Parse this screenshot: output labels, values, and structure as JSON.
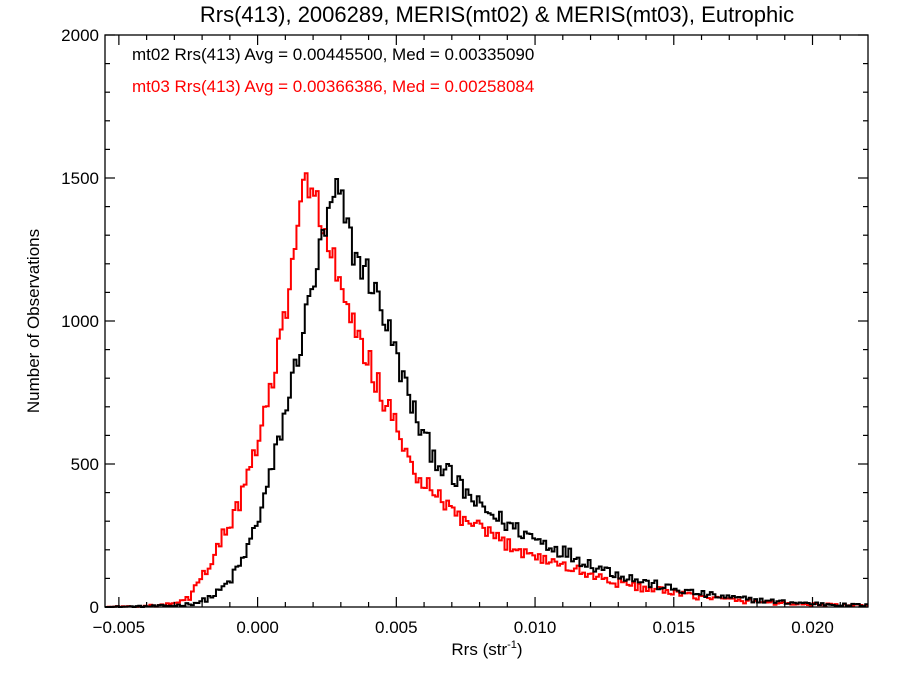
{
  "chart_data": {
    "type": "histogram",
    "title": "Rrs(413), 2006289, MERIS(mt02) & MERIS(mt03), Eutrophic",
    "xlabel": "Rrs (str",
    "xlabel_sup": "-1",
    "xlabel_close": ")",
    "ylabel": "Number of Observations",
    "xlim": [
      -0.0055,
      0.022
    ],
    "ylim": [
      0,
      2000
    ],
    "xticks": [
      -0.005,
      0.0,
      0.005,
      0.01,
      0.015,
      0.02
    ],
    "xtick_labels": [
      "−0.005",
      "0.000",
      "0.005",
      "0.010",
      "0.015",
      "0.020"
    ],
    "yticks": [
      0,
      500,
      1000,
      1500,
      2000
    ],
    "ytick_labels": [
      "0",
      "500",
      "1000",
      "1500",
      "2000"
    ],
    "grid": false,
    "legend_placement": "top-left",
    "series": [
      {
        "label": "mt02 Rrs(413) Avg = 0.00445500, Med = 0.00335090",
        "color": "#000000",
        "curve": [
          [
            -0.0055,
            0
          ],
          [
            -0.004,
            2
          ],
          [
            -0.003,
            5
          ],
          [
            -0.0025,
            10
          ],
          [
            -0.002,
            20
          ],
          [
            -0.0015,
            45
          ],
          [
            -0.001,
            90
          ],
          [
            -0.0005,
            170
          ],
          [
            0.0,
            300
          ],
          [
            0.0005,
            470
          ],
          [
            0.001,
            680
          ],
          [
            0.0015,
            900
          ],
          [
            0.002,
            1130
          ],
          [
            0.0023,
            1260
          ],
          [
            0.0026,
            1370
          ],
          [
            0.0028,
            1450
          ],
          [
            0.003,
            1420
          ],
          [
            0.0032,
            1340
          ],
          [
            0.0035,
            1230
          ],
          [
            0.0038,
            1190
          ],
          [
            0.004,
            1160
          ],
          [
            0.0045,
            1040
          ],
          [
            0.005,
            880
          ],
          [
            0.0055,
            720
          ],
          [
            0.006,
            590
          ],
          [
            0.0065,
            510
          ],
          [
            0.007,
            450
          ],
          [
            0.0075,
            400
          ],
          [
            0.008,
            350
          ],
          [
            0.009,
            290
          ],
          [
            0.01,
            240
          ],
          [
            0.011,
            195
          ],
          [
            0.012,
            150
          ],
          [
            0.013,
            115
          ],
          [
            0.014,
            85
          ],
          [
            0.015,
            62
          ],
          [
            0.016,
            45
          ],
          [
            0.017,
            33
          ],
          [
            0.018,
            24
          ],
          [
            0.019,
            17
          ],
          [
            0.02,
            12
          ],
          [
            0.021,
            8
          ],
          [
            0.022,
            6
          ]
        ]
      },
      {
        "label": "mt03 Rrs(413) Avg = 0.00366386, Med = 0.00258084",
        "color": "#ff0000",
        "curve": [
          [
            -0.0055,
            0
          ],
          [
            -0.004,
            3
          ],
          [
            -0.003,
            10
          ],
          [
            -0.0025,
            28
          ],
          [
            -0.002,
            100
          ],
          [
            -0.0015,
            200
          ],
          [
            -0.001,
            290
          ],
          [
            -0.0005,
            400
          ],
          [
            0.0,
            570
          ],
          [
            0.0005,
            770
          ],
          [
            0.001,
            1020
          ],
          [
            0.0013,
            1200
          ],
          [
            0.0015,
            1320
          ],
          [
            0.0017,
            1520
          ],
          [
            0.002,
            1480
          ],
          [
            0.0022,
            1390
          ],
          [
            0.0025,
            1280
          ],
          [
            0.0028,
            1180
          ],
          [
            0.003,
            1100
          ],
          [
            0.0035,
            960
          ],
          [
            0.004,
            860
          ],
          [
            0.0045,
            740
          ],
          [
            0.005,
            620
          ],
          [
            0.0055,
            500
          ],
          [
            0.006,
            430
          ],
          [
            0.0065,
            380
          ],
          [
            0.007,
            335
          ],
          [
            0.0075,
            300
          ],
          [
            0.008,
            270
          ],
          [
            0.009,
            220
          ],
          [
            0.01,
            180
          ],
          [
            0.011,
            145
          ],
          [
            0.012,
            112
          ],
          [
            0.013,
            85
          ],
          [
            0.014,
            65
          ],
          [
            0.015,
            48
          ],
          [
            0.016,
            35
          ],
          [
            0.017,
            25
          ],
          [
            0.018,
            18
          ],
          [
            0.019,
            13
          ],
          [
            0.02,
            9
          ],
          [
            0.021,
            6
          ],
          [
            0.022,
            4
          ]
        ]
      }
    ]
  }
}
